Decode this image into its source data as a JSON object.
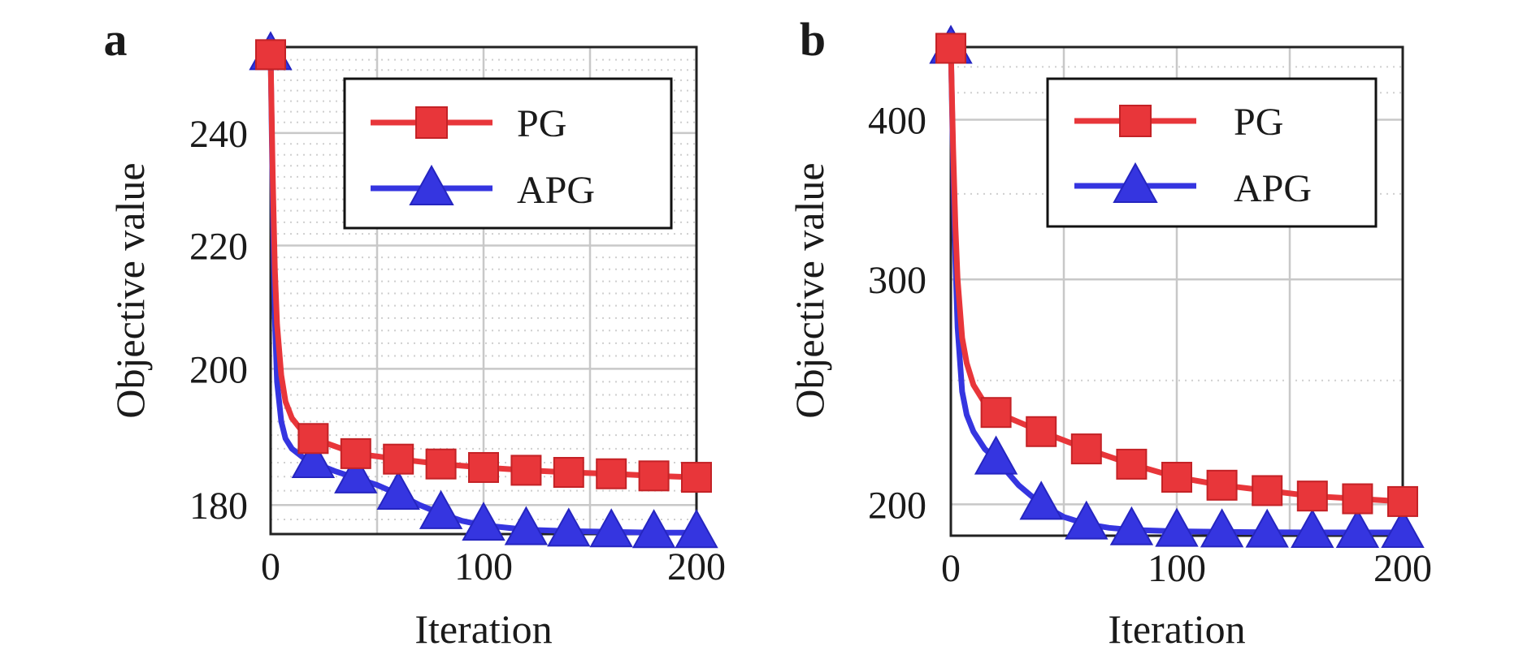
{
  "colors": {
    "pg": "#e8363a",
    "apg": "#3535e0",
    "axis": "#222222",
    "grid": "#c8c8c8",
    "minor_grid": "#cfcfcf"
  },
  "chart_data": [
    {
      "panel_label": "a",
      "type": "line",
      "xlabel": "Iteration",
      "ylabel": "Objective value",
      "xlim": [
        0,
        200
      ],
      "ylim": [
        176,
        256.5
      ],
      "yscale": "log",
      "xticks": [
        0,
        100,
        200
      ],
      "yticks": [
        180,
        200,
        220,
        240
      ],
      "xgrid_major": [
        50,
        100,
        150
      ],
      "ygrid_major": [
        180,
        200,
        220,
        240
      ],
      "ygrid_minor": [
        176,
        178,
        182,
        184,
        186,
        188,
        190,
        192,
        194,
        196,
        198,
        202,
        204,
        206,
        208,
        210,
        212,
        214,
        216,
        218,
        222,
        224,
        226,
        228,
        230,
        232,
        234,
        236,
        238,
        242,
        244,
        246,
        248,
        250,
        252,
        254
      ],
      "grid": true,
      "legend_position": "top-right",
      "series": [
        {
          "name": "PG",
          "marker": "square",
          "x": [
            0,
            1,
            2,
            3,
            5,
            7,
            10,
            15,
            20,
            40,
            60,
            80,
            100,
            120,
            140,
            160,
            180,
            200
          ],
          "y": [
            255,
            232,
            216,
            207,
            199,
            195,
            192.5,
            190.5,
            189.5,
            187.3,
            186.5,
            185.8,
            185.3,
            184.9,
            184.6,
            184.4,
            184.1,
            183.9
          ],
          "marker_x": [
            0,
            20,
            40,
            60,
            80,
            100,
            120,
            140,
            160,
            180,
            200
          ]
        },
        {
          "name": "APG",
          "marker": "triangle",
          "x": [
            0,
            1,
            2,
            3,
            5,
            7,
            10,
            15,
            20,
            30,
            40,
            50,
            60,
            70,
            80,
            90,
            100,
            120,
            140,
            160,
            180,
            200
          ],
          "y": [
            255,
            228,
            208,
            198,
            192,
            189.5,
            188,
            186.8,
            186,
            184.8,
            183.8,
            182.8,
            181.5,
            180,
            178.8,
            177.8,
            177.2,
            176.6,
            176.4,
            176.3,
            176.2,
            176.2
          ],
          "marker_x": [
            0,
            20,
            40,
            60,
            80,
            100,
            120,
            140,
            160,
            180,
            200
          ]
        }
      ]
    },
    {
      "panel_label": "b",
      "type": "line",
      "xlabel": "Iteration",
      "ylabel": "Objective value",
      "xlim": [
        0,
        200
      ],
      "ylim": [
        189,
        456
      ],
      "yscale": "log",
      "xticks": [
        0,
        100,
        200
      ],
      "yticks": [
        200,
        300,
        400
      ],
      "xgrid_major": [
        50,
        100,
        150
      ],
      "ygrid_major": [
        200,
        300,
        400
      ],
      "ygrid_minor": [
        250,
        350,
        420,
        440
      ],
      "grid": true,
      "legend_position": "top-right",
      "series": [
        {
          "name": "PG",
          "marker": "square",
          "x": [
            0,
            1,
            2,
            3,
            5,
            7,
            10,
            15,
            20,
            40,
            60,
            80,
            100,
            120,
            140,
            160,
            180,
            200
          ],
          "y": [
            455,
            380,
            330,
            300,
            270,
            258,
            248,
            240,
            236,
            228,
            221,
            215,
            210,
            207,
            205,
            203,
            202,
            201
          ],
          "marker_x": [
            0,
            20,
            40,
            60,
            80,
            100,
            120,
            140,
            160,
            180,
            200
          ]
        },
        {
          "name": "APG",
          "marker": "triangle",
          "x": [
            0,
            1,
            2,
            3,
            5,
            7,
            10,
            15,
            20,
            30,
            40,
            50,
            60,
            70,
            80,
            100,
            120,
            140,
            160,
            180,
            200
          ],
          "y": [
            455,
            370,
            310,
            275,
            245,
            235,
            228,
            221,
            217,
            207,
            200,
            195.5,
            193,
            191.7,
            191,
            190.5,
            190.3,
            190.2,
            190.1,
            190.1,
            190.1
          ],
          "marker_x": [
            0,
            20,
            40,
            60,
            80,
            100,
            120,
            140,
            160,
            180,
            200
          ]
        }
      ]
    }
  ]
}
